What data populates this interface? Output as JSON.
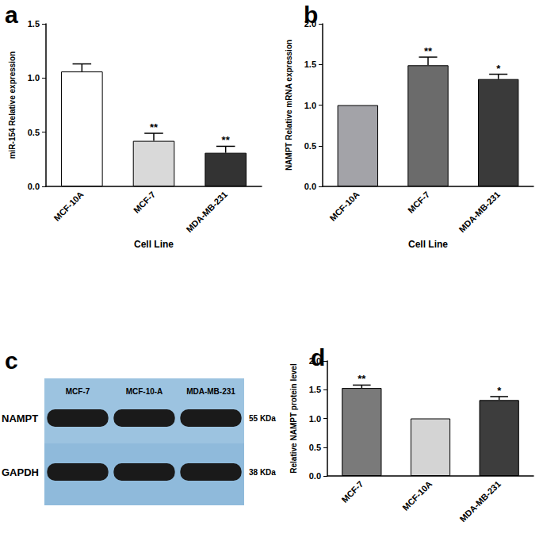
{
  "chart_data": [
    {
      "panel": "a",
      "type": "bar",
      "categories": [
        "MCF-10A",
        "MCF-7",
        "MDA-MB-231"
      ],
      "values": [
        1.06,
        0.42,
        0.31
      ],
      "errors": [
        0.07,
        0.07,
        0.06
      ],
      "annotations": [
        null,
        "**",
        "**"
      ],
      "colors": [
        "#ffffff",
        "#d9d9d9",
        "#333333"
      ],
      "y_label": "miR-154 Relative expression",
      "x_label": "Cell Line",
      "ylim": [
        0,
        1.5
      ],
      "yticks": [
        {
          "value": 0,
          "label": "0.0"
        },
        0.5,
        {
          "value": 1,
          "label": "1.0"
        },
        1.5
      ]
    },
    {
      "panel": "b",
      "type": "bar",
      "categories": [
        "MCF-10A",
        "MCF-7",
        "MDA-MB-231"
      ],
      "values": [
        1.0,
        1.49,
        1.32
      ],
      "errors": [
        0,
        0.1,
        0.06
      ],
      "annotations": [
        null,
        "**",
        "*"
      ],
      "colors": [
        "#a3a3a8",
        "#6b6b6b",
        "#3a3a3a"
      ],
      "y_label": "NAMPT Relative mRNA expression",
      "x_label": "Cell Line",
      "ylim": [
        0,
        2
      ],
      "yticks": [
        {
          "value": 0,
          "label": "0.0"
        },
        0.5,
        {
          "value": 1,
          "label": "1.0"
        },
        1.5,
        {
          "value": 2,
          "label": "2.0"
        }
      ]
    },
    {
      "panel": "d",
      "type": "bar",
      "categories": [
        "MCF-7",
        "MCF-10A",
        "MDA-MB-231"
      ],
      "values": [
        1.53,
        1.0,
        1.32
      ],
      "errors": [
        0.05,
        0,
        0.06
      ],
      "annotations": [
        "**",
        null,
        "*"
      ],
      "colors": [
        "#7a7a7a",
        "#d4d4d4",
        "#3d3d3d"
      ],
      "y_label": "Relative NAMPT protein level",
      "ylim": [
        0,
        2
      ],
      "yticks": [
        {
          "value": 0,
          "label": "0.0"
        },
        0.5,
        {
          "value": 1,
          "label": "1.0"
        },
        1.5,
        {
          "value": 2,
          "label": "2.0"
        }
      ]
    }
  ],
  "blot": {
    "panel": "c",
    "lanes": [
      "MCF-7",
      "MCF-10-A",
      "MDA-MB-231"
    ],
    "rows": [
      {
        "label": "NAMPT",
        "size": "55 KDa"
      },
      {
        "label": "GAPDH",
        "size": "38 KDa"
      }
    ]
  }
}
